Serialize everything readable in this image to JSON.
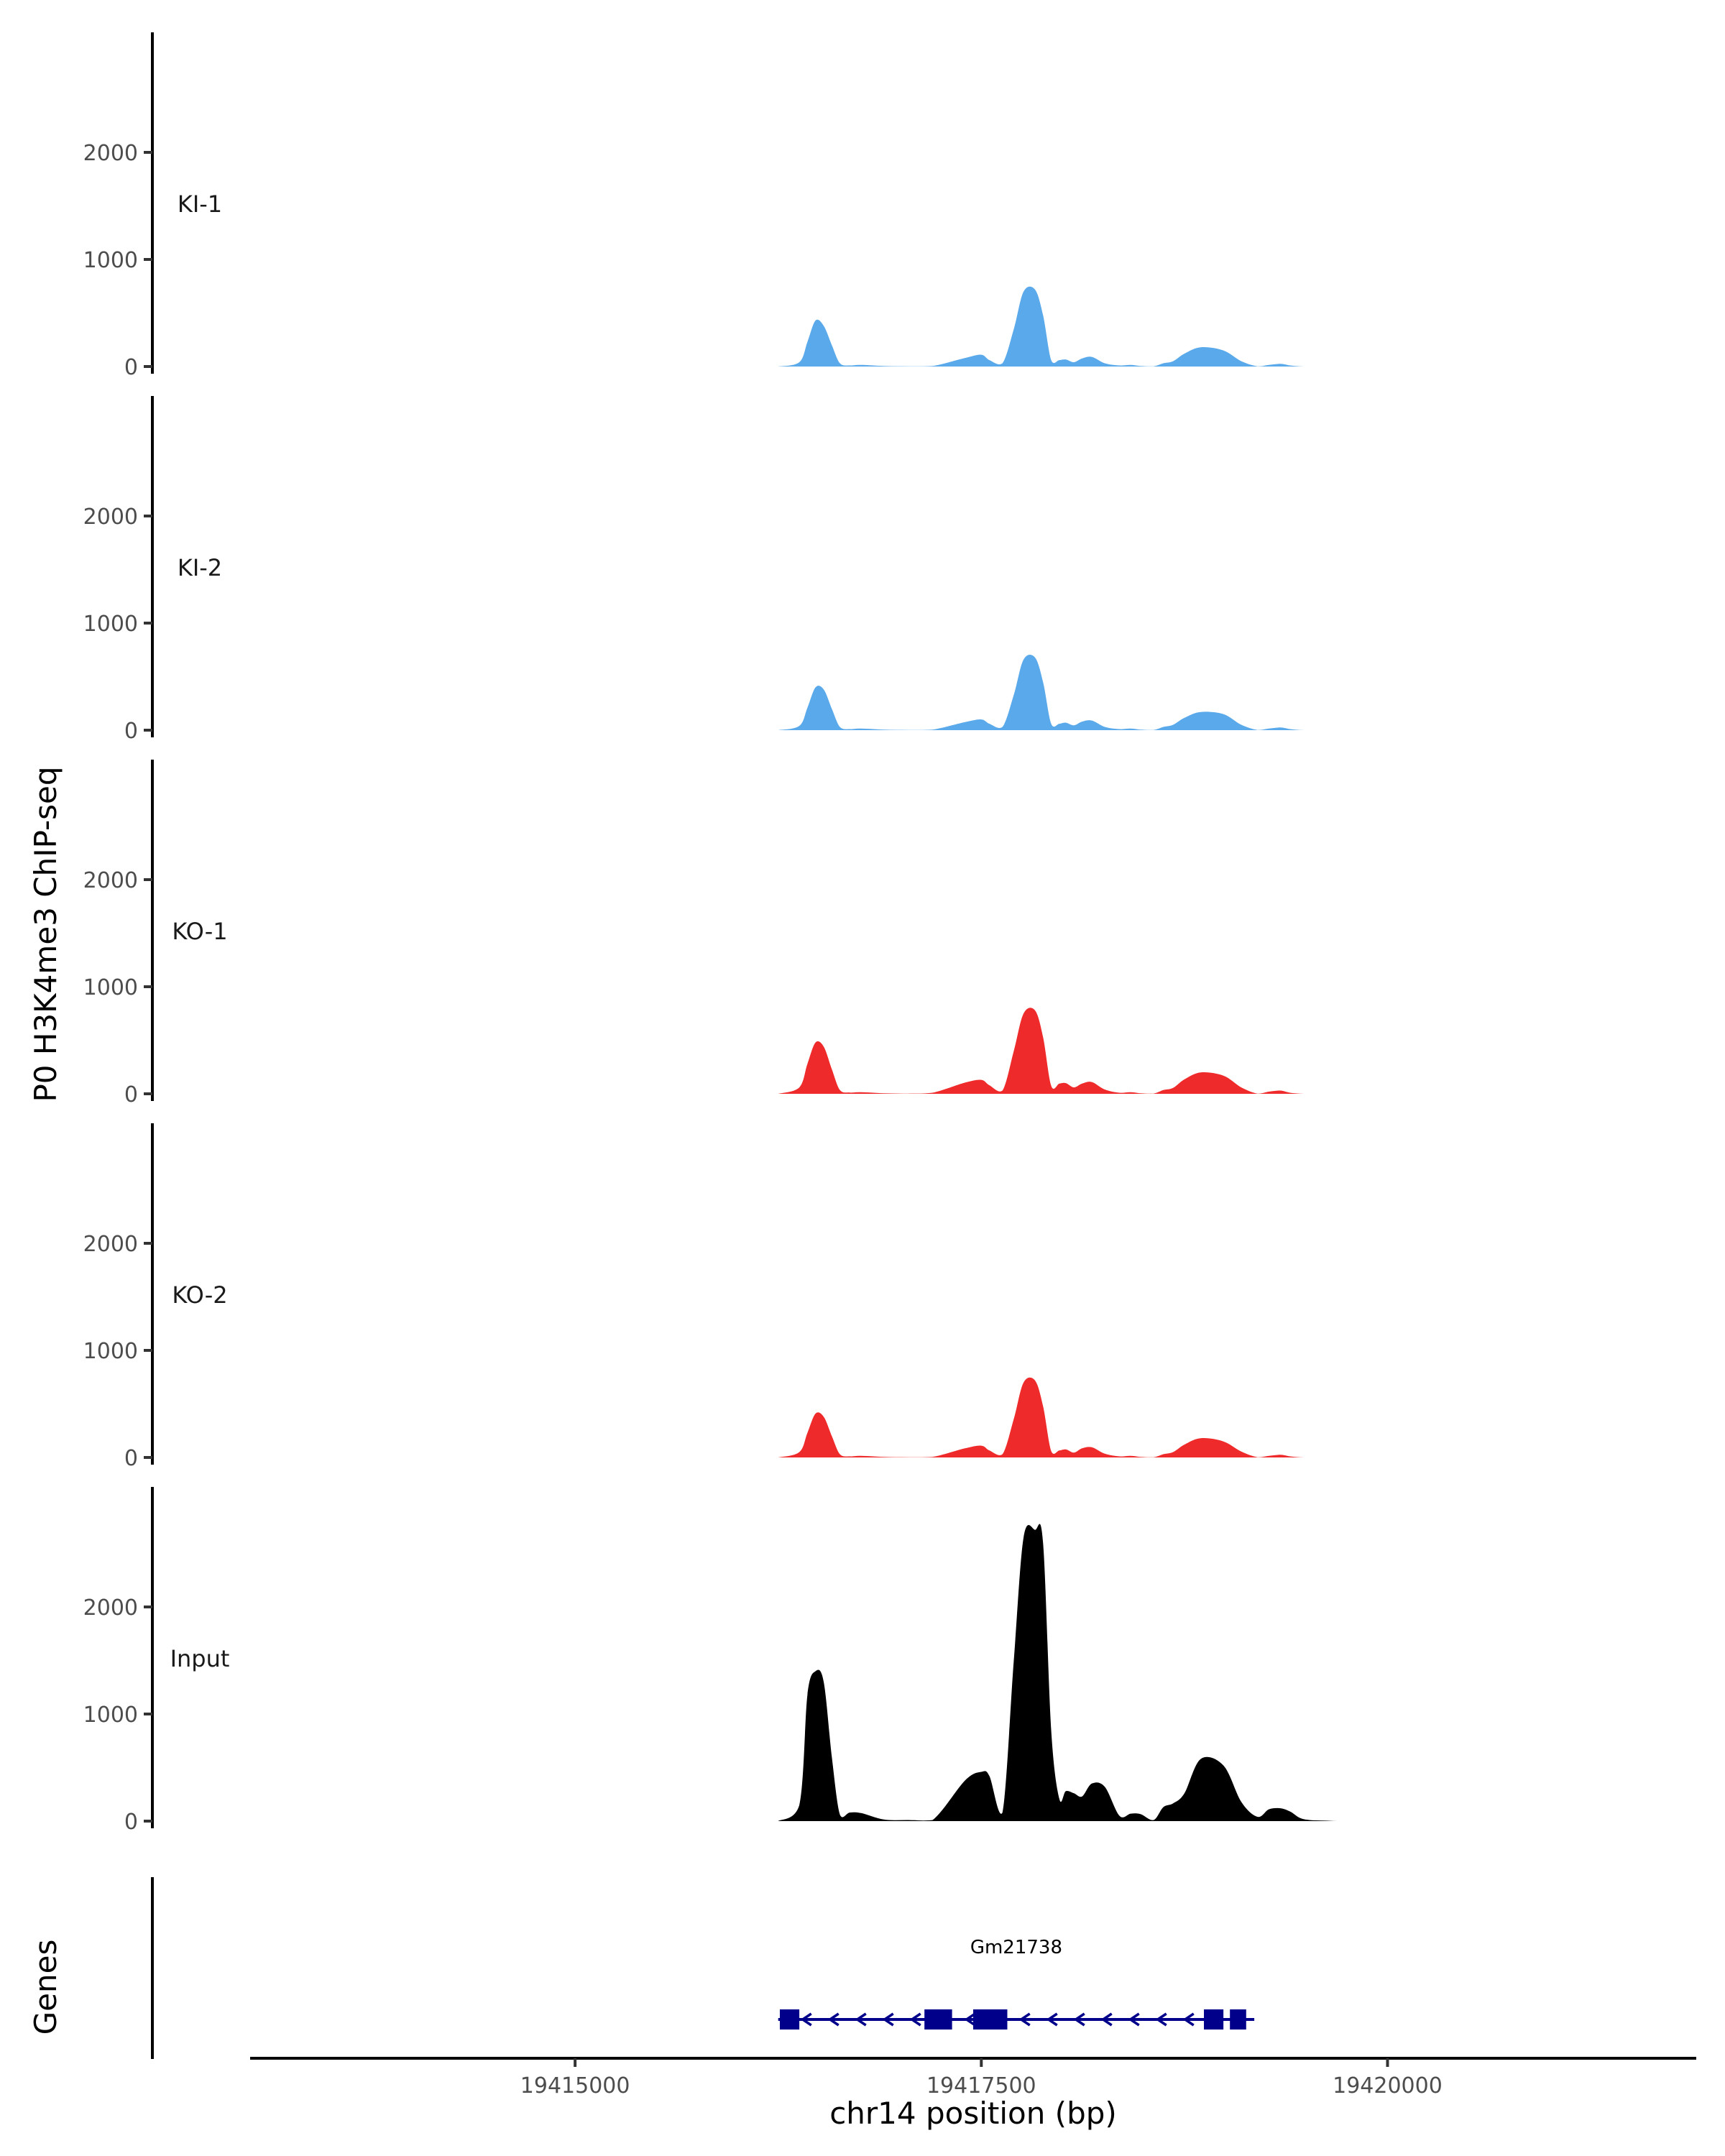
{
  "chart_data": {
    "type": "area",
    "ylabel": "P0 H3K4me3 ChIP-seq",
    "xlabel": "chr14 position (bp)",
    "genes_label": "Genes",
    "xlim": [
      19413000,
      19421900
    ],
    "ylim": [
      0,
      3000
    ],
    "y_ticks": [
      0,
      1000,
      2000
    ],
    "y_tick_labels": [
      "0",
      "1000",
      "2000"
    ],
    "x_ticks": [
      19415000,
      19417500,
      19420000
    ],
    "x_tick_labels": [
      "19415000",
      "19417500",
      "19420000"
    ],
    "colors": {
      "KI": "#5aa9ea",
      "KO": "#ee2a2a",
      "Input": "#000000",
      "gene": "#00008b"
    },
    "x": [
      19416250,
      19416380,
      19416430,
      19416480,
      19416530,
      19416580,
      19416630,
      19416690,
      19416760,
      19416900,
      19417050,
      19417200,
      19417400,
      19417500,
      19417550,
      19417630,
      19417700,
      19417760,
      19417830,
      19417880,
      19417930,
      19417980,
      19418020,
      19418070,
      19418120,
      19418180,
      19418260,
      19418350,
      19418420,
      19418480,
      19418560,
      19418620,
      19418680,
      19418750,
      19418850,
      19418990,
      19419100,
      19419200,
      19419270,
      19419340,
      19419400,
      19419460,
      19419520,
      19419600,
      19419690,
      19419770,
      19419870,
      19419950,
      19420070,
      19420170
    ],
    "series": [
      {
        "name": "KI-1",
        "group": "KI",
        "values": [
          0,
          40,
          230,
          430,
          380,
          200,
          30,
          10,
          15,
          5,
          2,
          5,
          80,
          110,
          60,
          30,
          350,
          700,
          720,
          480,
          60,
          60,
          65,
          40,
          75,
          90,
          30,
          10,
          15,
          5,
          2,
          30,
          50,
          120,
          180,
          150,
          50,
          2,
          15,
          25,
          10,
          2,
          0,
          0,
          0,
          0,
          0,
          0,
          0,
          0
        ]
      },
      {
        "name": "KI-2",
        "group": "KI",
        "values": [
          0,
          40,
          210,
          400,
          380,
          200,
          30,
          10,
          15,
          5,
          2,
          5,
          75,
          100,
          60,
          30,
          330,
          660,
          680,
          450,
          60,
          60,
          70,
          45,
          80,
          90,
          30,
          10,
          15,
          5,
          2,
          30,
          50,
          115,
          170,
          150,
          50,
          2,
          15,
          25,
          10,
          2,
          0,
          0,
          0,
          0,
          0,
          0,
          0,
          0
        ]
      },
      {
        "name": "KO-1",
        "group": "KO",
        "values": [
          0,
          60,
          280,
          480,
          440,
          230,
          35,
          12,
          15,
          5,
          2,
          10,
          105,
          130,
          80,
          30,
          400,
          750,
          780,
          530,
          75,
          95,
          100,
          60,
          95,
          110,
          40,
          10,
          15,
          5,
          2,
          35,
          55,
          135,
          200,
          170,
          60,
          2,
          20,
          30,
          10,
          2,
          0,
          0,
          0,
          0,
          0,
          0,
          0,
          0
        ]
      },
      {
        "name": "KO-2",
        "group": "KO",
        "values": [
          0,
          50,
          230,
          410,
          380,
          200,
          30,
          10,
          15,
          5,
          2,
          5,
          85,
          110,
          65,
          30,
          360,
          700,
          720,
          480,
          60,
          65,
          75,
          45,
          85,
          95,
          35,
          10,
          15,
          5,
          2,
          30,
          50,
          120,
          180,
          150,
          55,
          2,
          15,
          25,
          10,
          2,
          0,
          0,
          0,
          0,
          0,
          0,
          0,
          0
        ]
      },
      {
        "name": "Input",
        "group": "Input",
        "values": [
          0,
          150,
          1180,
          1400,
          1300,
          600,
          60,
          80,
          75,
          15,
          10,
          10,
          380,
          460,
          420,
          80,
          1500,
          2650,
          2720,
          2600,
          850,
          210,
          280,
          260,
          230,
          350,
          320,
          50,
          70,
          65,
          10,
          130,
          165,
          260,
          580,
          520,
          180,
          40,
          110,
          120,
          90,
          30,
          10,
          5,
          0,
          0,
          0,
          0,
          0,
          0
        ]
      }
    ],
    "genes": [
      {
        "name": "Gm21738",
        "strand": "-",
        "start": 19416250,
        "end": 19419180,
        "exons": [
          [
            19416260,
            19416380
          ],
          [
            19417150,
            19417320
          ],
          [
            19417450,
            19417660
          ],
          [
            19418870,
            19418990
          ],
          [
            19419030,
            19419130
          ]
        ]
      }
    ]
  }
}
